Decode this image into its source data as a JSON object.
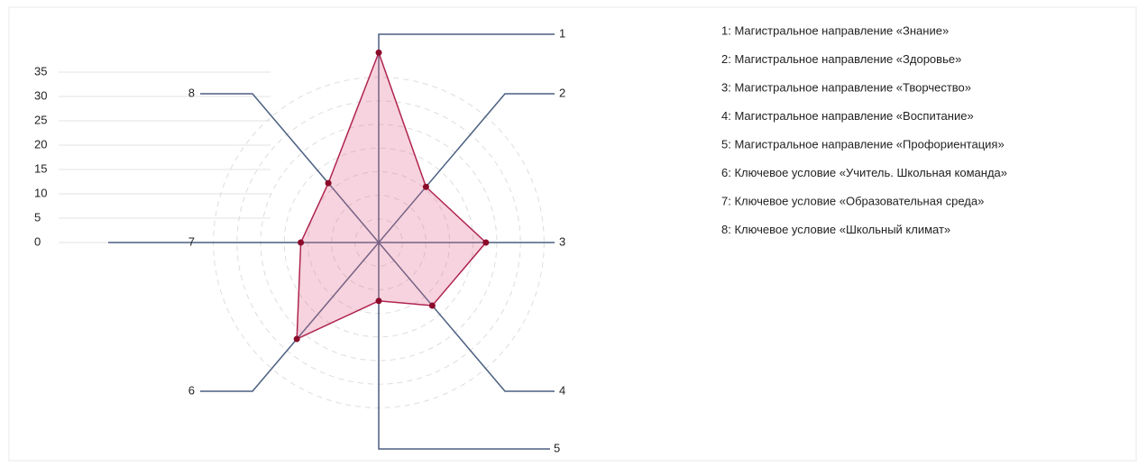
{
  "chart_data": {
    "type": "radar",
    "categories": [
      "1",
      "2",
      "3",
      "4",
      "5",
      "6",
      "7",
      "8"
    ],
    "legend_labels": [
      "1: Магистральное направление «Знание»",
      "2: Магистральное направление «Здоровье»",
      "3: Магистральное направление «Творчество»",
      "4: Магистральное направление «Воспитание»",
      "5: Магистральное направление «Профориентация»",
      "6: Ключевое условие «Учитель. Школьная команда»",
      "7: Ключевое условие «Образовательная среда»",
      "8: Ключевое условие «Школьный климат»"
    ],
    "series": [
      {
        "color": "#b0244f",
        "values": [
          39,
          15,
          22,
          17,
          12,
          26,
          16,
          16
        ]
      }
    ],
    "ylim": [
      0,
      35
    ],
    "yticks": [
      0,
      5,
      10,
      15,
      20,
      25,
      30,
      35
    ],
    "grid": true
  }
}
